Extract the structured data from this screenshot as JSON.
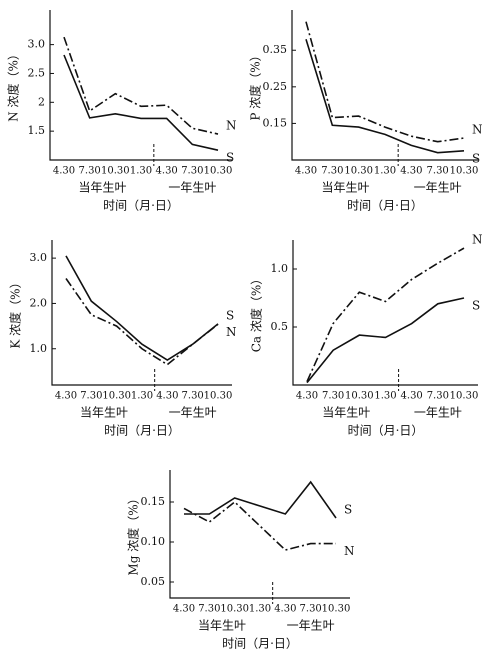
{
  "chart_data": [
    {
      "type": "line",
      "y_label": "N 浓度（%）",
      "x_label": "时间（月·日）",
      "groups": [
        "当年生叶",
        "一年生叶"
      ],
      "categories": [
        "4.30",
        "7.30",
        "10.30",
        "1.30",
        "4.30",
        "7.30",
        "10.30"
      ],
      "ylim": [
        1.0,
        3.6
      ],
      "yticks": [
        1.5,
        2.0,
        2.5,
        {
          "value": 3.0,
          "label": "3.0"
        }
      ],
      "series": [
        {
          "name": "N",
          "color": "#111",
          "line_style": "dash-dot",
          "values": [
            3.13,
            1.85,
            2.15,
            1.93,
            1.95,
            1.55,
            1.45
          ]
        },
        {
          "name": "S",
          "color": "#111",
          "line_style": "solid",
          "values": [
            2.82,
            1.73,
            1.8,
            1.72,
            1.72,
            1.27,
            1.17
          ]
        }
      ]
    },
    {
      "type": "line",
      "y_label": "P 浓度（%）",
      "x_label": "时间（月·日）",
      "groups": [
        "当年生叶",
        "一年生叶"
      ],
      "categories": [
        "4.30",
        "7.30",
        "10.30",
        "1.30",
        "4.30",
        "7.30",
        "10.30"
      ],
      "ylim": [
        0.05,
        0.46
      ],
      "yticks": [
        0.15,
        0.25,
        0.35
      ],
      "series": [
        {
          "name": "N",
          "color": "#111",
          "line_style": "dash-dot",
          "values": [
            0.428,
            0.166,
            0.17,
            0.14,
            0.115,
            0.1,
            0.11
          ]
        },
        {
          "name": "S",
          "color": "#111",
          "line_style": "solid",
          "values": [
            0.38,
            0.145,
            0.14,
            0.12,
            0.09,
            0.07,
            0.075
          ]
        }
      ]
    },
    {
      "type": "line",
      "y_label": "K 浓度（%）",
      "x_label": "时间（月·日）",
      "groups": [
        "当年生叶",
        "一年生叶"
      ],
      "categories": [
        "4.30",
        "7.30",
        "10.30",
        "1.30",
        "4.30",
        "7.30",
        "10.30"
      ],
      "ylim": [
        0.2,
        3.4
      ],
      "yticks": [
        {
          "value": 1.0,
          "label": "1.0"
        },
        {
          "value": 2.0,
          "label": "2.0"
        },
        {
          "value": 3.0,
          "label": "3.0"
        }
      ],
      "series": [
        {
          "name": "S",
          "color": "#111",
          "line_style": "solid",
          "values": [
            3.05,
            2.05,
            1.6,
            1.1,
            0.75,
            1.1,
            1.55
          ]
        },
        {
          "name": "N",
          "color": "#111",
          "line_style": "dash-dot",
          "values": [
            2.55,
            1.75,
            1.5,
            1.0,
            0.65,
            1.1,
            1.54
          ]
        }
      ]
    },
    {
      "type": "line",
      "y_label": "Ca 浓度（%）",
      "x_label": "时间（月·日）",
      "groups": [
        "当年生叶",
        "一年生叶"
      ],
      "categories": [
        "4.30",
        "7.30",
        "10.30",
        "1.30",
        "4.30",
        "7.30",
        "10.30"
      ],
      "ylim": [
        0,
        1.25
      ],
      "yticks": [
        0.5,
        {
          "value": 1.0,
          "label": "1.0"
        }
      ],
      "series": [
        {
          "name": "N",
          "color": "#111",
          "line_style": "dash-dot",
          "values": [
            0.03,
            0.53,
            0.8,
            0.72,
            0.91,
            1.05,
            1.18
          ]
        },
        {
          "name": "S",
          "color": "#111",
          "line_style": "solid",
          "values": [
            0.02,
            0.3,
            0.43,
            0.41,
            0.53,
            0.7,
            0.75
          ]
        }
      ]
    },
    {
      "type": "line",
      "y_label": "Mg 浓度（%）",
      "x_label": "时间（月·日）",
      "groups": [
        "当年生叶",
        "一年生叶"
      ],
      "categories": [
        "4.30",
        "7.30",
        "10.30",
        "1.30",
        "4.30",
        "7.30",
        "10.30"
      ],
      "ylim": [
        0.03,
        0.19
      ],
      "yticks": [
        0.05,
        {
          "value": 0.1,
          "label": "0.10"
        },
        0.15
      ],
      "series": [
        {
          "name": "S",
          "color": "#111",
          "line_style": "solid",
          "values": [
            0.135,
            0.135,
            0.155,
            0.145,
            0.135,
            0.175,
            0.13
          ]
        },
        {
          "name": "N",
          "color": "#111",
          "line_style": "dash-dot",
          "values": [
            0.142,
            0.125,
            0.15,
            0.12,
            0.09,
            0.098,
            0.098
          ]
        }
      ]
    }
  ]
}
